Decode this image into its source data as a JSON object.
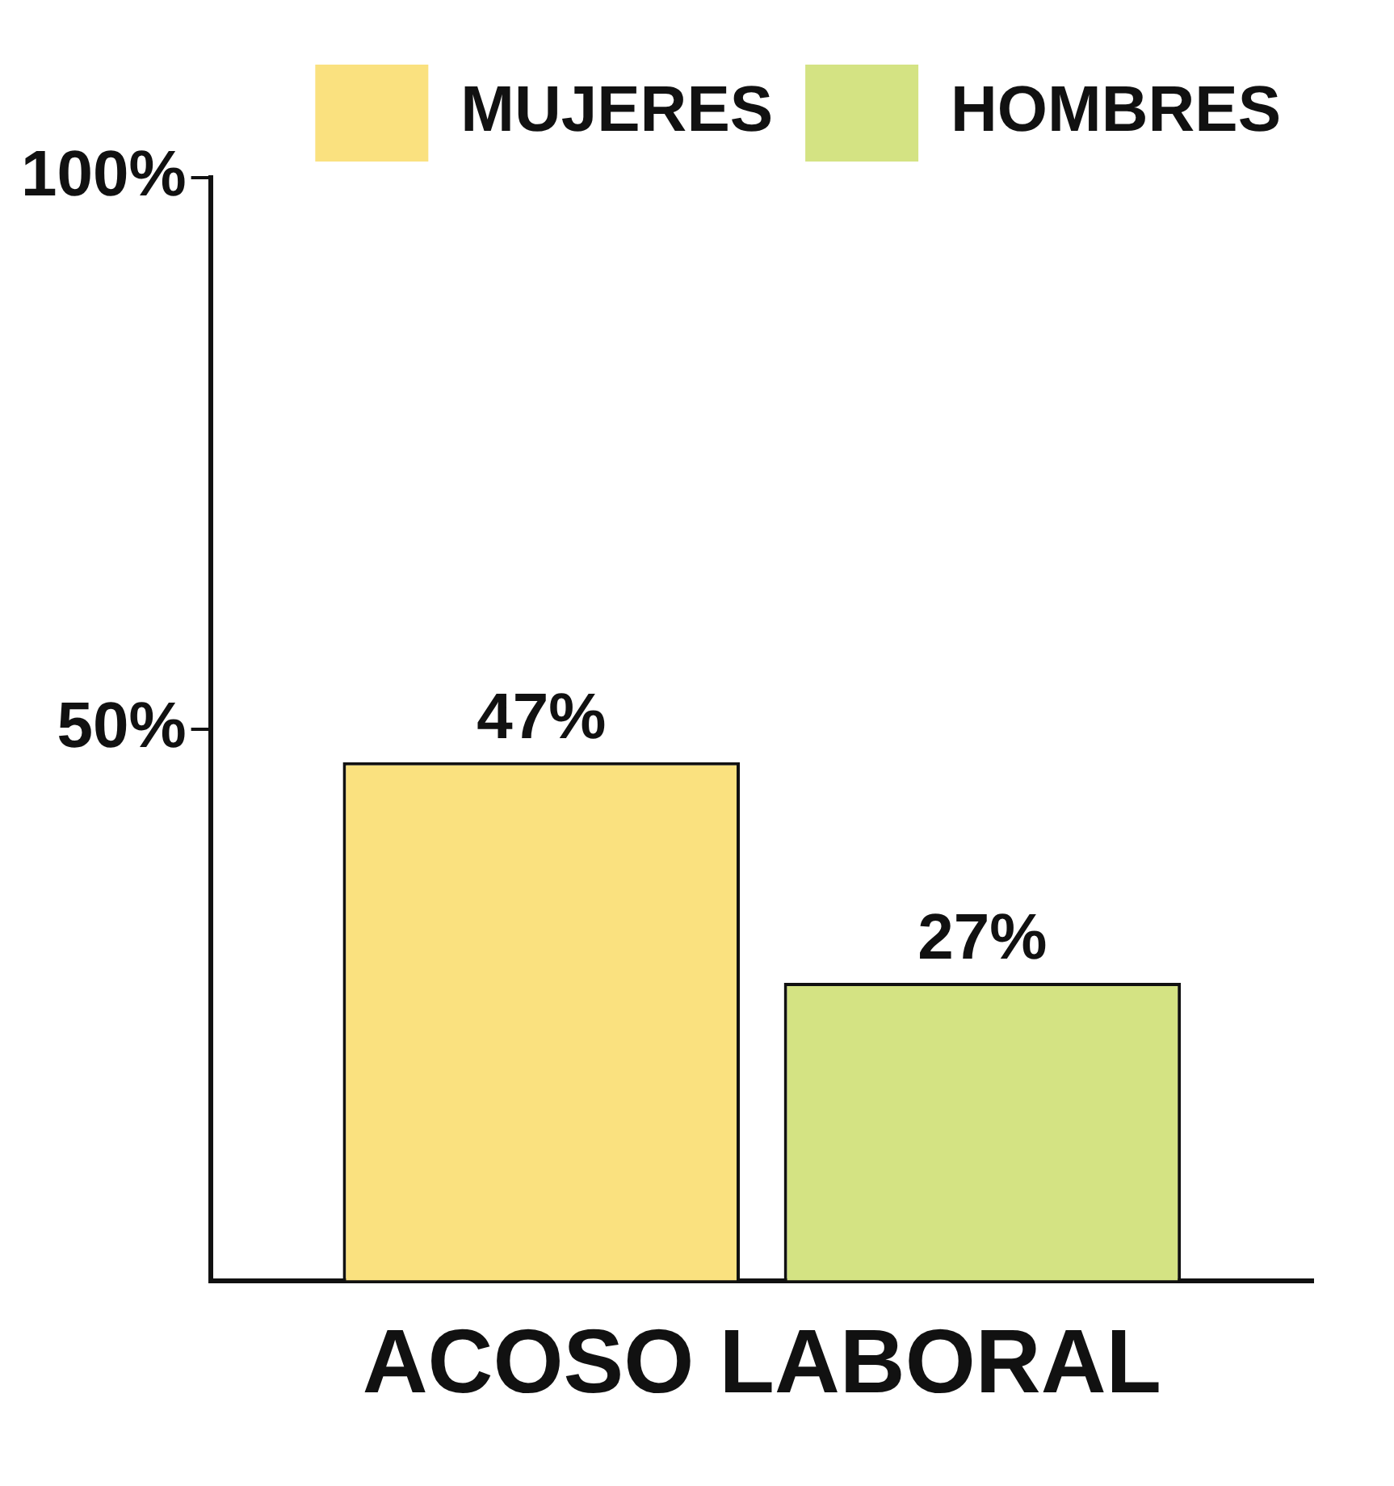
{
  "chart_data": {
    "type": "bar",
    "categories": [
      "ACOSO LABORAL"
    ],
    "series": [
      {
        "name": "MUJERES",
        "color": "#fae17f",
        "values": [
          47
        ],
        "value_labels": [
          "47%"
        ]
      },
      {
        "name": "HOMBRES",
        "color": "#d4e383",
        "values": [
          27
        ],
        "value_labels": [
          "27%"
        ]
      }
    ],
    "ylim": [
      0,
      100
    ],
    "yticks": [
      {
        "value": 50,
        "label": "50%"
      },
      {
        "value": 100,
        "label": "100%"
      }
    ],
    "grid": false,
    "legend": "top right"
  }
}
